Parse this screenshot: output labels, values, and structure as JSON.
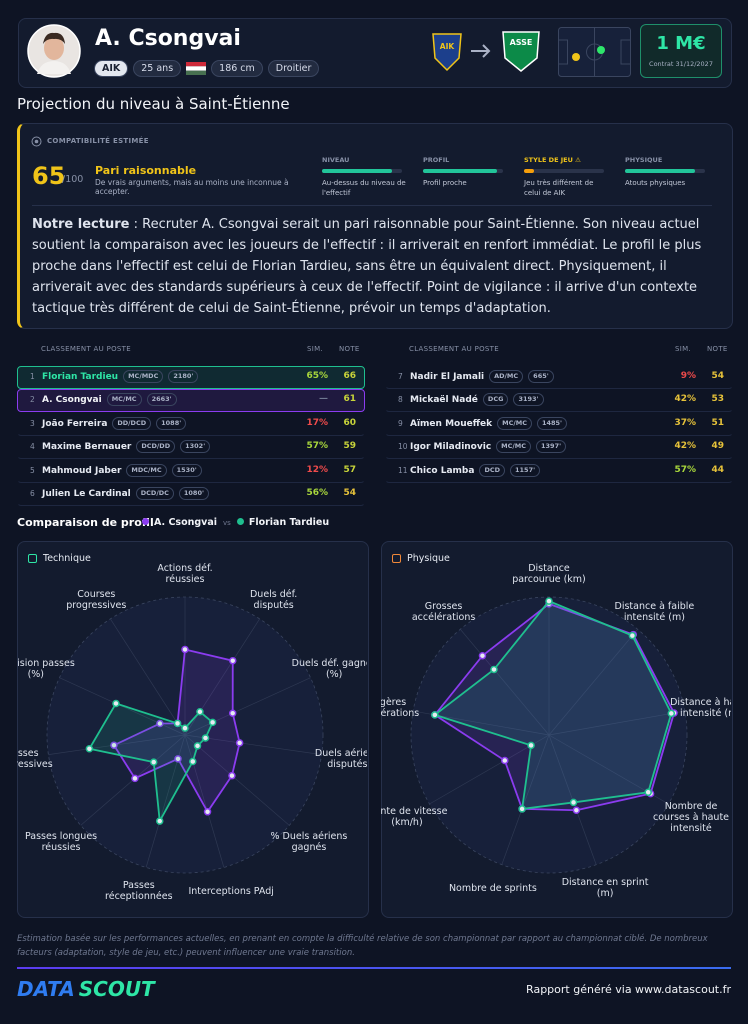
{
  "header": {
    "name": "A. Csongvai",
    "club": "AIK",
    "age": "25 ans",
    "height": "186 cm",
    "foot": "Droitier",
    "from_logo": "AIK",
    "to_logo": "ASSE",
    "value": "1 M€",
    "contract": "Contrat 31/12/2027"
  },
  "projection": {
    "title": "Projection du niveau à Saint-Étienne",
    "label": "COMPATIBILITÉ ESTIMÉE",
    "score": 65,
    "score_max": "/100",
    "verdict": "Pari raisonnable",
    "verdict_text": "De vrais arguments, mais au moins une inconnue à accepter.",
    "criteria": [
      {
        "name": "NIVEAU",
        "level": 88,
        "color": "#22c59a",
        "text": "Au-dessus du niveau de l'effectif"
      },
      {
        "name": "PROFIL",
        "level": 92,
        "color": "#22c59a",
        "text": "Profil proche"
      },
      {
        "name": "STYLE DE JEU ⚠",
        "level": 12,
        "color": "#f59e0b",
        "text": "Jeu très différent de celui de AIK"
      },
      {
        "name": "PHYSIQUE",
        "level": 88,
        "color": "#22c59a",
        "text": "Atouts physiques"
      }
    ],
    "reading_lead": "Notre lecture",
    "reading": ": Recruter A. Csongvai serait un pari raisonnable pour Saint-Étienne. Son niveau actuel soutient la comparaison avec les joueurs de l'effectif : il arriverait en renfort immédiat. Le profil le plus proche dans l'effectif est celui de Florian Tardieu, sans être un équivalent direct. Physiquement, il arriverait avec des standards supérieurs à ceux de l'effectif. Point de vigilance : il arrive d'un contexte tactique très différent de celui de Saint-Étienne, prévoir un temps d'adaptation."
  },
  "ranking": {
    "header": "CLASSEMENT AU POSTE",
    "sim_header": "SIM.",
    "note_header": "NOTE",
    "left": [
      {
        "rank": 1,
        "name": "Florian Tardieu",
        "position": "MC/MDC",
        "minutes": "2180'",
        "sim": "65%",
        "note": 66
      },
      {
        "rank": 2,
        "name": "A. Csongvai",
        "position": "MC/MC",
        "minutes": "2663'",
        "sim": "—",
        "note": 61
      },
      {
        "rank": 3,
        "name": "João Ferreira",
        "position": "DD/DCD",
        "minutes": "1088'",
        "sim": "17%",
        "note": 60
      },
      {
        "rank": 4,
        "name": "Maxime Bernauer",
        "position": "DCD/DD",
        "minutes": "1302'",
        "sim": "57%",
        "note": 59
      },
      {
        "rank": 5,
        "name": "Mahmoud Jaber",
        "position": "MDC/MC",
        "minutes": "1530'",
        "sim": "12%",
        "note": 57
      },
      {
        "rank": 6,
        "name": "Julien Le Cardinal",
        "position": "DCD/DC",
        "minutes": "1080'",
        "sim": "56%",
        "note": 54
      }
    ],
    "right": [
      {
        "rank": 7,
        "name": "Nadir El Jamali",
        "position": "AD/MC",
        "minutes": "665'",
        "sim": "9%",
        "note": 54
      },
      {
        "rank": 8,
        "name": "Mickaël Nadé",
        "position": "DCG",
        "minutes": "3193'",
        "sim": "42%",
        "note": 53
      },
      {
        "rank": 9,
        "name": "Aïmen Moueffek",
        "position": "MC/MC",
        "minutes": "1485'",
        "sim": "37%",
        "note": 51
      },
      {
        "rank": 10,
        "name": "Igor Miladinovic",
        "position": "MC/MC",
        "minutes": "1397'",
        "sim": "42%",
        "note": 49
      },
      {
        "rank": 11,
        "name": "Chico Lamba",
        "position": "DCD",
        "minutes": "1157'",
        "sim": "57%",
        "note": 44
      }
    ]
  },
  "comparison": {
    "title": "Comparaison de profil",
    "vs": "vs",
    "radars": [
      {
        "type": "radar",
        "title": "Technique",
        "rlim": [
          0,
          100
        ],
        "rticks": [
          20,
          40,
          60,
          80,
          100
        ],
        "axes": [
          "Actions déf. réussies",
          "Duels déf. disputés",
          "Duels déf. gagnés (%)",
          "Duels aériens disputés",
          "% Duels aériens gagnés",
          "Interceptions PAdj",
          "Passes réceptionnées",
          "Passes longues réussies",
          "Passes progressives",
          "Précision passes (%)",
          "Courses progressives"
        ],
        "series": [
          {
            "name": "A. Csongvai",
            "color": "#8b3cf0",
            "values": [
              62,
              64,
              38,
              40,
              45,
              58,
              18,
              48,
              52,
              20,
              10
            ]
          },
          {
            "name": "Florian Tardieu",
            "color": "#1fbf8f",
            "values": [
              5,
              20,
              22,
              15,
              12,
              20,
              65,
              30,
              70,
              55,
              10
            ]
          }
        ]
      },
      {
        "type": "radar",
        "title": "Physique",
        "rlim": [
          0,
          100
        ],
        "rticks": [
          20,
          40,
          60,
          80,
          100
        ],
        "axes": [
          "Distance parcourue (km)",
          "Distance à faible intensité (m)",
          "Distance à haute intensité (m)",
          "Nombre de courses à haute intensité",
          "Distance en sprint (m)",
          "Nombre de sprints",
          "Pointe de vitesse (km/h)",
          "Légères accélérations",
          "Grosses accélérations"
        ],
        "series": [
          {
            "name": "A. Csongvai",
            "color": "#8b3cf0",
            "values": [
              95,
              95,
              92,
              85,
              58,
              57,
              37,
              84,
              75
            ]
          },
          {
            "name": "Florian Tardieu",
            "color": "#1fbf8f",
            "values": [
              97,
              94,
              90,
              83,
              52,
              57,
              15,
              84,
              62
            ]
          }
        ]
      }
    ]
  },
  "footer": {
    "disclaimer": "Estimation basée sur les performances actuelles, en prenant en compte la difficulté relative de son championnat par rapport au championnat ciblé. De nombreux facteurs (adaptation, style de jeu, etc.) peuvent influencer une vraie transition.",
    "logo_a": "DATA",
    "logo_b": "SCOUT",
    "generated": "Rapport généré via www.datascout.fr"
  }
}
